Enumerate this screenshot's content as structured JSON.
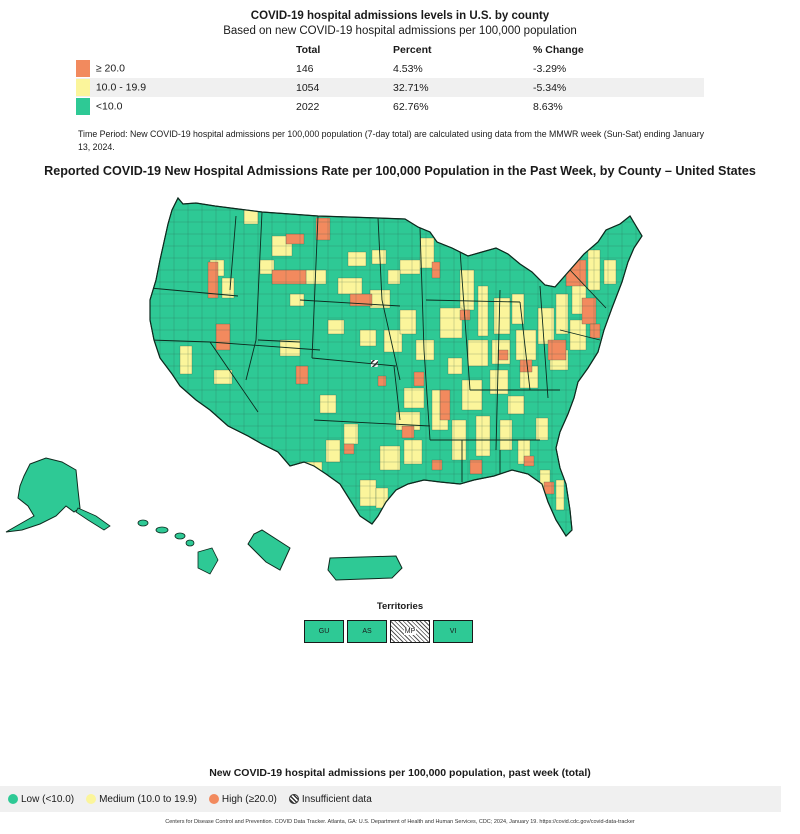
{
  "header": {
    "title": "COVID-19 hospital admissions levels in U.S. by county",
    "subtitle": "Based on new COVID-19 hospital admissions per 100,000 population"
  },
  "summary": {
    "columns": [
      "Total",
      "Percent",
      "% Change"
    ],
    "rows": [
      {
        "label": "≥ 20.0",
        "color": "#f28a5e",
        "total": "146",
        "percent": "4.53%",
        "change": "-3.29%"
      },
      {
        "label": "10.0 - 19.9",
        "color": "#fbf59b",
        "total": "1054",
        "percent": "32.71%",
        "change": "-5.34%"
      },
      {
        "label": "<10.0",
        "color": "#2ec995",
        "total": "2022",
        "percent": "62.76%",
        "change": "8.63%"
      }
    ]
  },
  "time_period": "Time Period: New COVID-19 hospital admissions per 100,000 population (7-day total) are calculated using data from the MMWR week (Sun-Sat) ending January 13, 2024.",
  "map": {
    "title": "Reported COVID-19 New Hospital Admissions Rate per 100,000 Population in the Past Week, by County – United States"
  },
  "territories": {
    "title": "Territories",
    "items": [
      {
        "code": "GU",
        "level": "low"
      },
      {
        "code": "AS",
        "level": "low"
      },
      {
        "code": "MP",
        "level": "insufficient"
      },
      {
        "code": "VI",
        "level": "low"
      }
    ]
  },
  "legend": {
    "title": "New COVID-19 hospital admissions per 100,000 population, past week (total)",
    "items": [
      {
        "label": "Low (<10.0)",
        "color": "#2ec995"
      },
      {
        "label": "Medium (10.0 to 19.9)",
        "color": "#fbf59b"
      },
      {
        "label": "High (≥20.0)",
        "color": "#f28a5e"
      },
      {
        "label": "Insufficient data",
        "color": "hatch"
      }
    ]
  },
  "citation": "Centers for Disease Control and Prevention. COVID Data Tracker. Atlanta, GA: U.S. Department of Health and Human Services, CDC; 2024, January 19. https://covid.cdc.gov/covid-data-tracker",
  "colors": {
    "low": "#2ec995",
    "medium": "#fbf59b",
    "high": "#f28a5e",
    "border": "#1a3d2e"
  }
}
